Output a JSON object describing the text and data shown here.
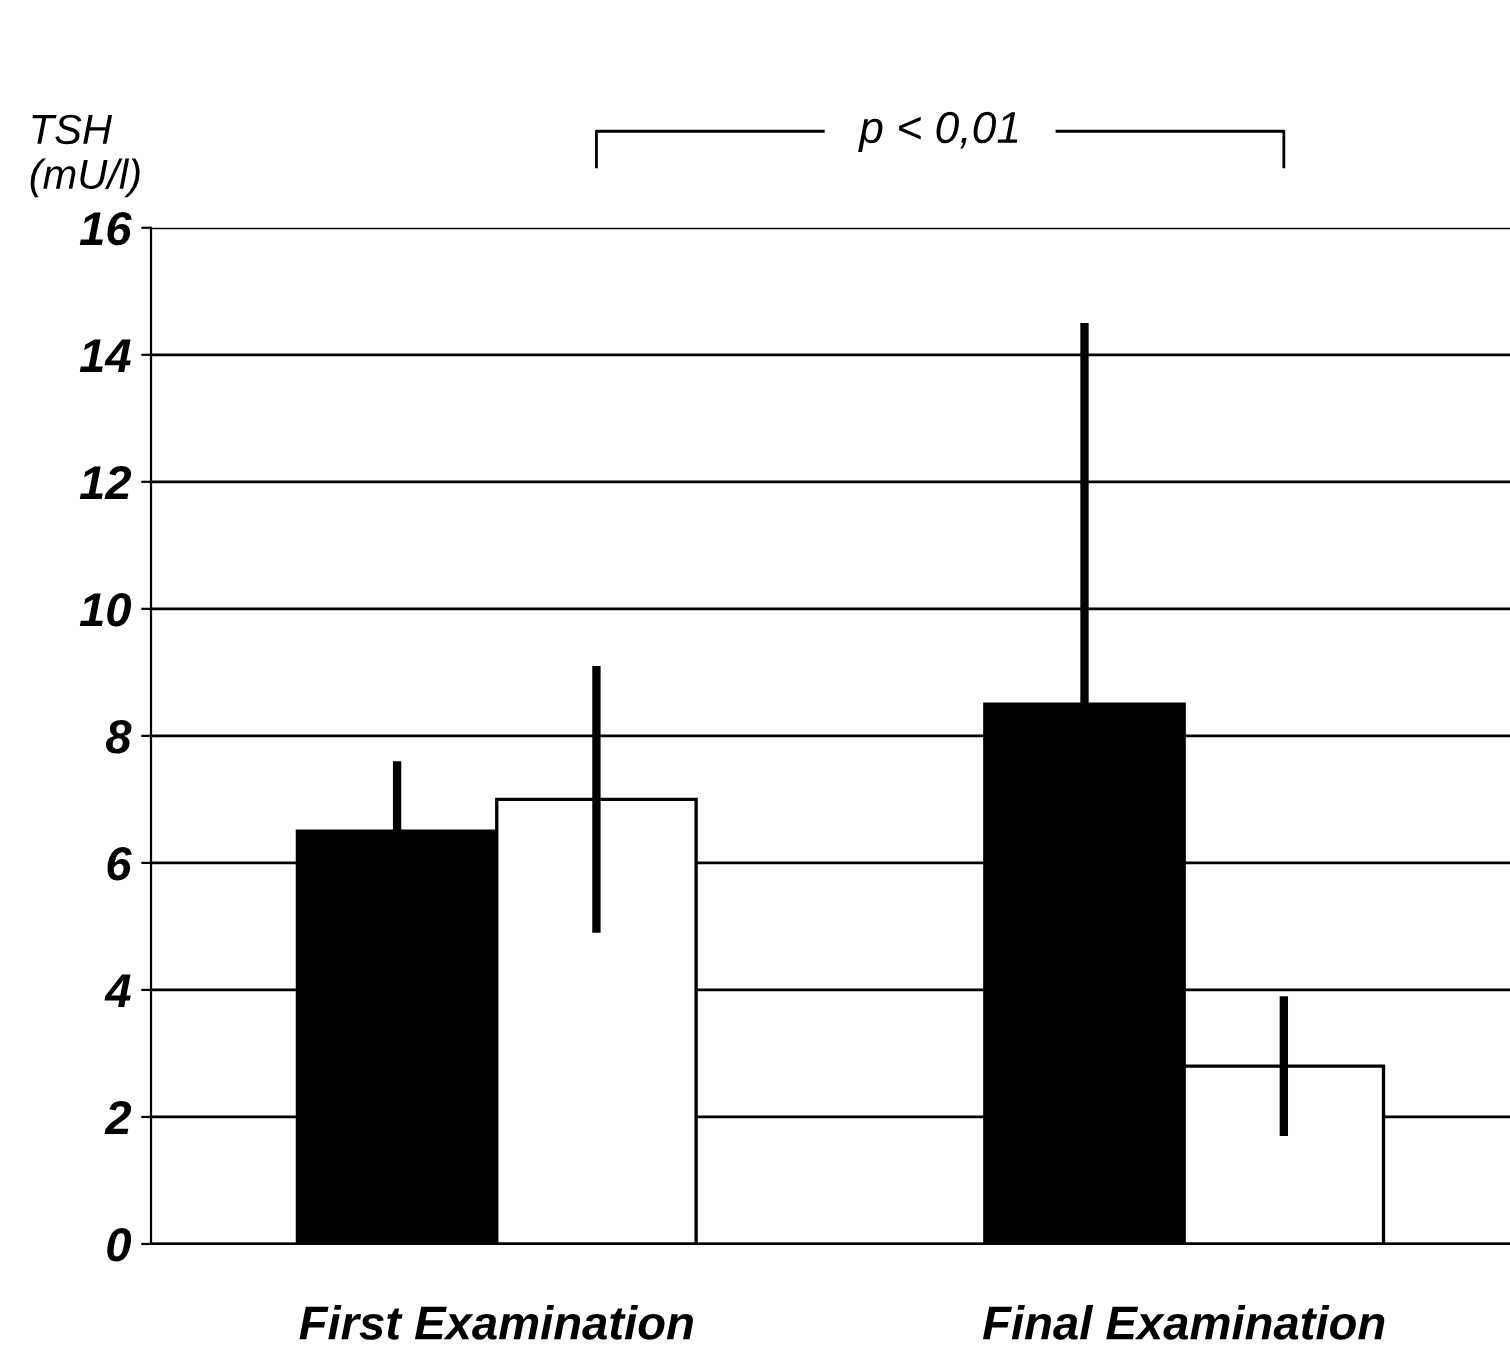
{
  "chart_data": {
    "type": "bar",
    "ylabel": "TSH\n(mU/l)",
    "categories": [
      "First Examination",
      "Final Examination"
    ],
    "series": [
      {
        "color": "#000000",
        "values": [
          6.5,
          8.5
        ],
        "errors": [
          1.1,
          6.0
        ]
      },
      {
        "color": "#ffffff",
        "values": [
          7.0,
          2.8
        ],
        "errors": [
          2.1,
          1.1
        ]
      }
    ],
    "ylim": [
      0,
      16
    ],
    "yticks": [
      0,
      2,
      4,
      6,
      8,
      10,
      12,
      14,
      16
    ],
    "grid": "y",
    "legend": false,
    "annotations": [
      "p < 0,01"
    ]
  }
}
